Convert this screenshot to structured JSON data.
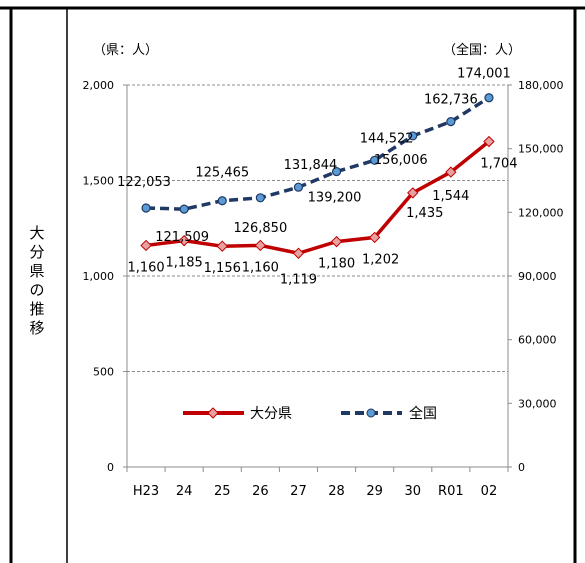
{
  "side_label_chars": [
    "大",
    "分",
    "県",
    "の",
    "推",
    "移"
  ],
  "chart_data": {
    "type": "line",
    "left_unit": "（県：人）",
    "right_unit": "（全国：人）",
    "categories": [
      "H23",
      "24",
      "25",
      "26",
      "27",
      "28",
      "29",
      "30",
      "R01",
      "02"
    ],
    "y_left": {
      "lim": [
        0,
        2000
      ],
      "ticks": [
        0,
        500,
        1000,
        1500,
        2000
      ],
      "tick_labels": [
        "0",
        "500",
        "1,000",
        "1,500",
        "2,000"
      ]
    },
    "y_right": {
      "lim": [
        0,
        180000
      ],
      "ticks": [
        0,
        30000,
        60000,
        90000,
        120000,
        150000,
        180000
      ],
      "tick_labels": [
        "0",
        "30,000",
        "60,000",
        "90,000",
        "120,000",
        "150,000",
        "180,000"
      ]
    },
    "grid": "dashed-horizontal",
    "legend_position": "bottom-center",
    "series": [
      {
        "name": "大分県",
        "axis": "left",
        "color": "#c00000",
        "style": "solid",
        "values": [
          1160,
          1185,
          1156,
          1160,
          1119,
          1180,
          1202,
          1435,
          1544,
          1704
        ],
        "labels": [
          "1,160",
          "1,185",
          "1,156",
          "1,160",
          "1,119",
          "1,180",
          "1,202",
          "1,435",
          "1,544",
          "1,704"
        ]
      },
      {
        "name": "全国",
        "axis": "right",
        "color": "#1f3864",
        "style": "dashed",
        "values": [
          122053,
          121509,
          125465,
          126850,
          131844,
          139200,
          144522,
          156006,
          162736,
          174001
        ],
        "labels": [
          "122,053",
          "121,509",
          "125,465",
          "126,850",
          "131,844",
          "139,200",
          "144,522",
          "156,006",
          "162,736",
          "174,001"
        ]
      }
    ]
  }
}
